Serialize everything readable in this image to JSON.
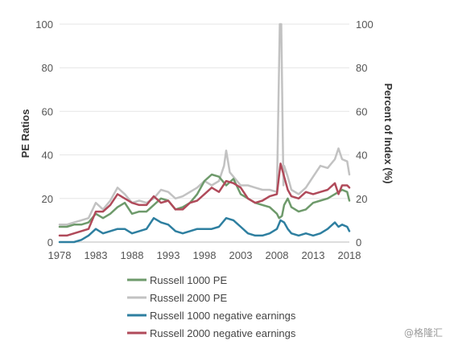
{
  "chart_data": {
    "type": "line",
    "title": "",
    "ylabel_left": "PE Ratios",
    "ylabel_right": "Percent of Index (%)",
    "xlim": [
      1978,
      2018
    ],
    "ylim_left": [
      0,
      100
    ],
    "ylim_right": [
      0,
      100
    ],
    "x_ticks": [
      "1978",
      "1983",
      "1988",
      "1993",
      "1998",
      "2003",
      "2008",
      "2013",
      "2018"
    ],
    "y_ticks": [
      "0",
      "20",
      "40",
      "60",
      "80",
      "100"
    ],
    "grid": true,
    "legend_position": "bottom",
    "series": [
      {
        "name": "Russell 1000 PE",
        "color": "#6e9a6b",
        "axis": "left",
        "points": [
          [
            1978,
            7
          ],
          [
            1979,
            7
          ],
          [
            1980,
            8
          ],
          [
            1981,
            8
          ],
          [
            1982,
            9
          ],
          [
            1983,
            13
          ],
          [
            1984,
            11
          ],
          [
            1985,
            13
          ],
          [
            1986,
            16
          ],
          [
            1987,
            18
          ],
          [
            1988,
            13
          ],
          [
            1989,
            14
          ],
          [
            1990,
            14
          ],
          [
            1991,
            17
          ],
          [
            1992,
            20
          ],
          [
            1993,
            19
          ],
          [
            1994,
            15
          ],
          [
            1995,
            16
          ],
          [
            1996,
            18
          ],
          [
            1997,
            22
          ],
          [
            1998,
            28
          ],
          [
            1999,
            31
          ],
          [
            2000,
            30
          ],
          [
            2001,
            26
          ],
          [
            2002,
            29
          ],
          [
            2003,
            22
          ],
          [
            2004,
            20
          ],
          [
            2005,
            18
          ],
          [
            2006,
            17
          ],
          [
            2007,
            16
          ],
          [
            2008,
            13
          ],
          [
            2008.3,
            11
          ],
          [
            2008.7,
            12
          ],
          [
            2009,
            17
          ],
          [
            2009.5,
            20
          ],
          [
            2010,
            16
          ],
          [
            2011,
            14
          ],
          [
            2012,
            15
          ],
          [
            2013,
            18
          ],
          [
            2014,
            19
          ],
          [
            2015,
            20
          ],
          [
            2016,
            22
          ],
          [
            2017,
            24
          ],
          [
            2017.7,
            23
          ],
          [
            2018,
            19
          ]
        ]
      },
      {
        "name": "Russell 2000 PE",
        "color": "#c2c2c2",
        "axis": "left",
        "points": [
          [
            1978,
            8
          ],
          [
            1979,
            8
          ],
          [
            1980,
            9
          ],
          [
            1981,
            10
          ],
          [
            1982,
            11
          ],
          [
            1983,
            18
          ],
          [
            1984,
            15
          ],
          [
            1985,
            19
          ],
          [
            1986,
            25
          ],
          [
            1987,
            22
          ],
          [
            1988,
            18
          ],
          [
            1989,
            19
          ],
          [
            1990,
            18
          ],
          [
            1991,
            20
          ],
          [
            1992,
            24
          ],
          [
            1993,
            23
          ],
          [
            1994,
            20
          ],
          [
            1995,
            21
          ],
          [
            1996,
            23
          ],
          [
            1997,
            25
          ],
          [
            1998,
            28
          ],
          [
            1999,
            26
          ],
          [
            2000,
            28
          ],
          [
            2000.7,
            35
          ],
          [
            2001,
            42
          ],
          [
            2001.5,
            32
          ],
          [
            2002,
            30
          ],
          [
            2003,
            26
          ],
          [
            2004,
            26
          ],
          [
            2005,
            25
          ],
          [
            2006,
            24
          ],
          [
            2007,
            24
          ],
          [
            2008,
            23
          ],
          [
            2008.4,
            100
          ],
          [
            2008.6,
            100
          ],
          [
            2008.9,
            26
          ],
          [
            2009,
            35
          ],
          [
            2009.5,
            30
          ],
          [
            2010,
            24
          ],
          [
            2011,
            22
          ],
          [
            2012,
            25
          ],
          [
            2013,
            30
          ],
          [
            2014,
            35
          ],
          [
            2015,
            34
          ],
          [
            2016,
            38
          ],
          [
            2016.5,
            43
          ],
          [
            2017,
            38
          ],
          [
            2017.7,
            37
          ],
          [
            2018,
            31
          ]
        ]
      },
      {
        "name": "Russell 1000 negative earnings",
        "color": "#2e7fa0",
        "axis": "right",
        "points": [
          [
            1978,
            0
          ],
          [
            1979,
            0
          ],
          [
            1980,
            0
          ],
          [
            1981,
            1
          ],
          [
            1982,
            3
          ],
          [
            1983,
            6
          ],
          [
            1984,
            4
          ],
          [
            1985,
            5
          ],
          [
            1986,
            6
          ],
          [
            1987,
            6
          ],
          [
            1988,
            4
          ],
          [
            1989,
            5
          ],
          [
            1990,
            6
          ],
          [
            1991,
            11
          ],
          [
            1992,
            9
          ],
          [
            1993,
            8
          ],
          [
            1994,
            5
          ],
          [
            1995,
            4
          ],
          [
            1996,
            5
          ],
          [
            1997,
            6
          ],
          [
            1998,
            6
          ],
          [
            1999,
            6
          ],
          [
            2000,
            7
          ],
          [
            2001,
            11
          ],
          [
            2002,
            10
          ],
          [
            2003,
            7
          ],
          [
            2004,
            4
          ],
          [
            2005,
            3
          ],
          [
            2006,
            3
          ],
          [
            2007,
            4
          ],
          [
            2008,
            6
          ],
          [
            2008.5,
            10
          ],
          [
            2009,
            9
          ],
          [
            2009.5,
            6
          ],
          [
            2010,
            4
          ],
          [
            2011,
            3
          ],
          [
            2012,
            4
          ],
          [
            2013,
            3
          ],
          [
            2014,
            4
          ],
          [
            2015,
            6
          ],
          [
            2016,
            9
          ],
          [
            2016.5,
            7
          ],
          [
            2017,
            8
          ],
          [
            2017.7,
            7
          ],
          [
            2018,
            5
          ]
        ]
      },
      {
        "name": "Russell 2000 negative earnings",
        "color": "#b04a5a",
        "axis": "right",
        "points": [
          [
            1978,
            3
          ],
          [
            1979,
            3
          ],
          [
            1980,
            4
          ],
          [
            1981,
            5
          ],
          [
            1982,
            6
          ],
          [
            1983,
            14
          ],
          [
            1984,
            14
          ],
          [
            1985,
            17
          ],
          [
            1986,
            22
          ],
          [
            1987,
            20
          ],
          [
            1988,
            18
          ],
          [
            1989,
            17
          ],
          [
            1990,
            17
          ],
          [
            1991,
            21
          ],
          [
            1992,
            18
          ],
          [
            1993,
            19
          ],
          [
            1994,
            15
          ],
          [
            1995,
            15
          ],
          [
            1996,
            18
          ],
          [
            1997,
            19
          ],
          [
            1998,
            22
          ],
          [
            1999,
            25
          ],
          [
            2000,
            23
          ],
          [
            2001,
            28
          ],
          [
            2002,
            27
          ],
          [
            2003,
            25
          ],
          [
            2004,
            20
          ],
          [
            2005,
            18
          ],
          [
            2006,
            19
          ],
          [
            2007,
            21
          ],
          [
            2008,
            22
          ],
          [
            2008.5,
            36
          ],
          [
            2009,
            30
          ],
          [
            2009.5,
            24
          ],
          [
            2010,
            21
          ],
          [
            2011,
            20
          ],
          [
            2012,
            23
          ],
          [
            2013,
            22
          ],
          [
            2014,
            23
          ],
          [
            2015,
            24
          ],
          [
            2016,
            27
          ],
          [
            2016.5,
            22
          ],
          [
            2017,
            26
          ],
          [
            2017.7,
            26
          ],
          [
            2018,
            25
          ]
        ]
      }
    ]
  },
  "watermark": "@格隆汇"
}
